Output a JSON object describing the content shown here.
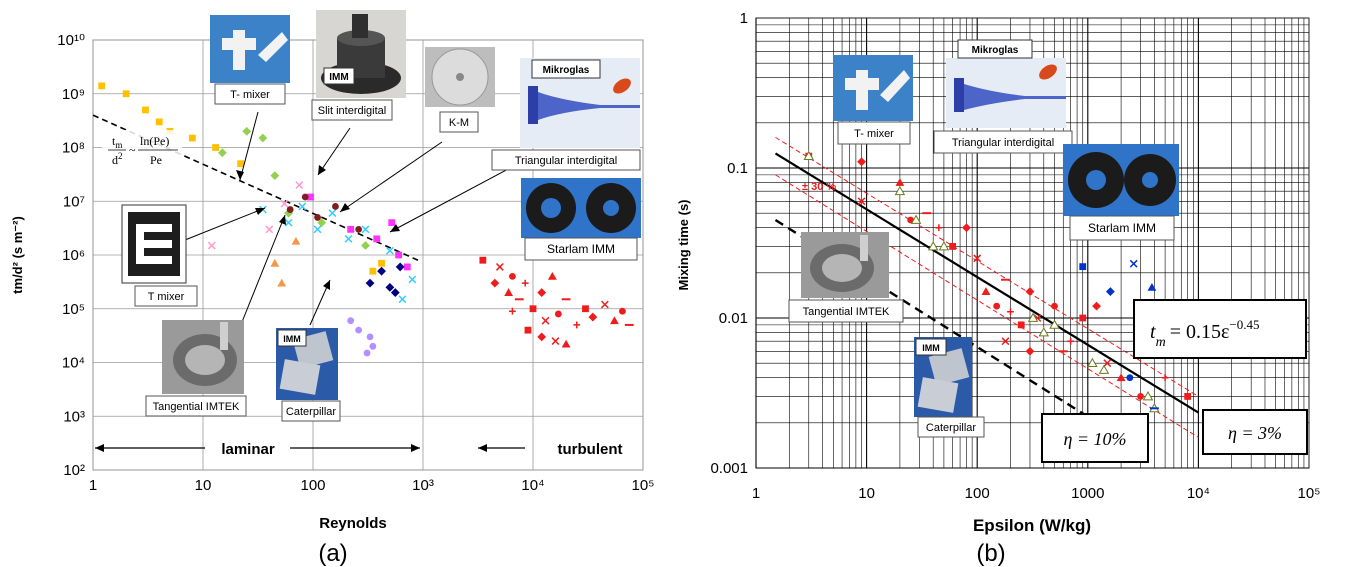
{
  "colors": {
    "yellow": "#ffc000",
    "green": "#92d050",
    "cyan": "#33ccff",
    "magenta": "#ff33ff",
    "pink": "#ff99cc",
    "darkred": "#7f1f1f",
    "navy": "#000080",
    "orange": "#f79646",
    "purple": "#b38fff",
    "red": "#ee1c1c",
    "blue": "#0033cc",
    "olive": "#c8d86a"
  },
  "chart_data": [
    {
      "panel": "(a)",
      "type": "scatter",
      "xlabel": "Reynolds",
      "ylabel": "tm/d² (s m⁻²)",
      "xscale": "log",
      "yscale": "log",
      "xlim": [
        1,
        100000
      ],
      "ylim": [
        100,
        10000000000
      ],
      "x_tick_labels": [
        "1",
        "10",
        "100",
        "10³",
        "10⁴",
        "10⁵"
      ],
      "y_tick_labels": [
        "10²",
        "10³",
        "10⁴",
        "10⁵",
        "10⁶",
        "10⁷",
        "10⁸",
        "10⁹",
        "10¹⁰"
      ],
      "grid": true,
      "regime_labels": [
        "laminar",
        "turbulent"
      ],
      "formula": {
        "lhs_num": "t",
        "lhs_num_sub": "m",
        "lhs_den": "d",
        "lhs_den_sup": "2",
        "sim": "~",
        "rhs_num": "ln(Pe)",
        "rhs_den": "Pe"
      },
      "fit_line": {
        "style": "dashed",
        "points": [
          [
            1,
            400000000
          ],
          [
            900,
            800000
          ]
        ]
      },
      "annotations": [
        "T- mixer",
        "IMM",
        "Slit interdigital",
        "K-M",
        "Mikroglas",
        "Triangular interdigital",
        "Starlam IMM",
        "T mixer",
        "Tangential IMTEK",
        "IMM",
        "Caterpillar"
      ],
      "series": [
        {
          "color": "yellow",
          "marker": "square",
          "points": [
            [
              1.2,
              1400000000
            ],
            [
              2,
              1000000000
            ],
            [
              3,
              500000000
            ],
            [
              4,
              300000000
            ],
            [
              5,
              200000000
            ],
            [
              8,
              150000000
            ],
            [
              13,
              100000000
            ],
            [
              22,
              50000000
            ],
            [
              350,
              500000
            ],
            [
              420,
              700000
            ]
          ]
        },
        {
          "color": "green",
          "marker": "diamond",
          "points": [
            [
              15,
              80000000
            ],
            [
              25,
              200000000
            ],
            [
              35,
              150000000
            ],
            [
              45,
              30000000
            ],
            [
              60,
              6000000
            ],
            [
              120,
              4000000
            ],
            [
              300,
              1500000
            ]
          ]
        },
        {
          "color": "cyan",
          "marker": "x",
          "points": [
            [
              35,
              7000000
            ],
            [
              60,
              4000000
            ],
            [
              80,
              8000000
            ],
            [
              110,
              3000000
            ],
            [
              150,
              6000000
            ],
            [
              210,
              2000000
            ],
            [
              300,
              3000000
            ],
            [
              500,
              1200000
            ],
            [
              650,
              150000
            ],
            [
              800,
              350000
            ]
          ]
        },
        {
          "color": "magenta",
          "marker": "square",
          "points": [
            [
              95,
              12000000
            ],
            [
              220,
              3000000
            ],
            [
              380,
              2000000
            ],
            [
              520,
              4000000
            ],
            [
              600,
              1000000
            ],
            [
              720,
              600000
            ]
          ]
        },
        {
          "color": "pink",
          "marker": "x",
          "points": [
            [
              12,
              1500000
            ],
            [
              40,
              3000000
            ],
            [
              55,
              9000000
            ],
            [
              75,
              20000000
            ]
          ]
        },
        {
          "color": "darkred",
          "marker": "circle",
          "points": [
            [
              62,
              7000000
            ],
            [
              85,
              12000000
            ],
            [
              110,
              5000000
            ],
            [
              160,
              8000000
            ],
            [
              260,
              3000000
            ]
          ]
        },
        {
          "color": "navy",
          "marker": "diamond",
          "points": [
            [
              330,
              300000
            ],
            [
              420,
              500000
            ],
            [
              500,
              250000
            ],
            [
              560,
              200000
            ],
            [
              620,
              600000
            ]
          ]
        },
        {
          "color": "orange",
          "marker": "triangle",
          "points": [
            [
              45,
              700000
            ],
            [
              52,
              300000
            ],
            [
              70,
              1800000
            ]
          ]
        },
        {
          "color": "purple",
          "marker": "circle",
          "points": [
            [
              260,
              40000
            ],
            [
              330,
              30000
            ],
            [
              220,
              60000
            ],
            [
              310,
              15000
            ],
            [
              350,
              20000
            ]
          ]
        },
        {
          "color": "red",
          "marker": "mixed",
          "points": [
            [
              3500,
              800000
            ],
            [
              4500,
              300000
            ],
            [
              5000,
              600000
            ],
            [
              6000,
              200000
            ],
            [
              6500,
              400000
            ],
            [
              7500,
              150000
            ],
            [
              8500,
              300000
            ],
            [
              10000,
              100000
            ],
            [
              12000,
              200000
            ],
            [
              13000,
              60000
            ],
            [
              15000,
              400000
            ],
            [
              17000,
              80000
            ],
            [
              20000,
              150000
            ],
            [
              25000,
              50000
            ],
            [
              30000,
              100000
            ],
            [
              35000,
              70000
            ],
            [
              45000,
              120000
            ],
            [
              55000,
              60000
            ],
            [
              65000,
              90000
            ],
            [
              75000,
              50000
            ],
            [
              6500,
              90000
            ],
            [
              9000,
              40000
            ],
            [
              12000,
              30000
            ],
            [
              16000,
              25000
            ],
            [
              20000,
              22000
            ]
          ]
        }
      ]
    },
    {
      "panel": "(b)",
      "type": "scatter",
      "xlabel": "Epsilon (W/kg)",
      "ylabel": "Mixing time (s)",
      "xscale": "log",
      "yscale": "log",
      "xlim": [
        1,
        100000
      ],
      "ylim": [
        0.001,
        1
      ],
      "x_tick_labels": [
        "1",
        "10",
        "100",
        "1000",
        "10⁴",
        "10⁵"
      ],
      "y_tick_labels": [
        "0.001",
        "0.01",
        "0.1",
        "1"
      ],
      "grid": true,
      "band_label": "± 30 %",
      "equation": {
        "t": "t",
        "sub": "m",
        "rest": "= 0.15ε",
        "exp": "−0.45"
      },
      "efficiency_labels": [
        "η = 3%",
        "η = 10%"
      ],
      "fit_lines": [
        {
          "style": "solid",
          "points": [
            [
              1.5,
              0.125
            ],
            [
              10000,
              0.00234
            ]
          ]
        },
        {
          "style": "dashed",
          "points": [
            [
              1.5,
              0.045
            ],
            [
              1000,
              0.0022
            ]
          ]
        },
        {
          "style": "red-dashed",
          "points": [
            [
              1.5,
              0.16
            ],
            [
              10000,
              0.003
            ]
          ]
        },
        {
          "style": "red-dashed",
          "points": [
            [
              1.5,
              0.09
            ],
            [
              10000,
              0.0016
            ]
          ]
        }
      ],
      "annotations": [
        "Mikroglas",
        "T- mixer",
        "Triangular interdigital",
        "Starlam IMM",
        "Tangential IMTEK",
        "IMM",
        "Caterpillar"
      ],
      "series": [
        {
          "color": "red",
          "marker": "mixed",
          "points": [
            [
              3,
              0.12
            ],
            [
              9,
              0.11
            ],
            [
              9,
              0.06
            ],
            [
              20,
              0.08
            ],
            [
              25,
              0.045
            ],
            [
              35,
              0.05
            ],
            [
              45,
              0.04
            ],
            [
              60,
              0.03
            ],
            [
              80,
              0.04
            ],
            [
              100,
              0.025
            ],
            [
              120,
              0.015
            ],
            [
              150,
              0.012
            ],
            [
              180,
              0.018
            ],
            [
              200,
              0.011
            ],
            [
              250,
              0.009
            ],
            [
              300,
              0.015
            ],
            [
              350,
              0.01
            ],
            [
              400,
              0.008
            ],
            [
              500,
              0.012
            ],
            [
              600,
              0.006
            ],
            [
              700,
              0.007
            ],
            [
              900,
              0.01
            ],
            [
              1200,
              0.012
            ],
            [
              1500,
              0.005
            ],
            [
              2000,
              0.004
            ],
            [
              3000,
              0.003
            ],
            [
              4000,
              0.008
            ],
            [
              5000,
              0.004
            ],
            [
              8000,
              0.003
            ],
            [
              300,
              0.006
            ],
            [
              180,
              0.007
            ]
          ]
        },
        {
          "color": "olive",
          "marker": "triangle",
          "points": [
            [
              3,
              0.12
            ],
            [
              20,
              0.07
            ],
            [
              28,
              0.045
            ],
            [
              40,
              0.03
            ],
            [
              50,
              0.03
            ],
            [
              320,
              0.01
            ],
            [
              400,
              0.008
            ],
            [
              500,
              0.009
            ],
            [
              1100,
              0.005
            ],
            [
              1400,
              0.0045
            ],
            [
              3500,
              0.003
            ],
            [
              4000,
              0.0025
            ]
          ]
        },
        {
          "color": "blue",
          "marker": "mixed",
          "points": [
            [
              900,
              0.022
            ],
            [
              1600,
              0.015
            ],
            [
              2600,
              0.023
            ],
            [
              3800,
              0.016
            ],
            [
              2400,
              0.004
            ],
            [
              4000,
              0.0025
            ]
          ]
        }
      ]
    }
  ],
  "panel_labels": [
    "(a)",
    "(b)"
  ]
}
